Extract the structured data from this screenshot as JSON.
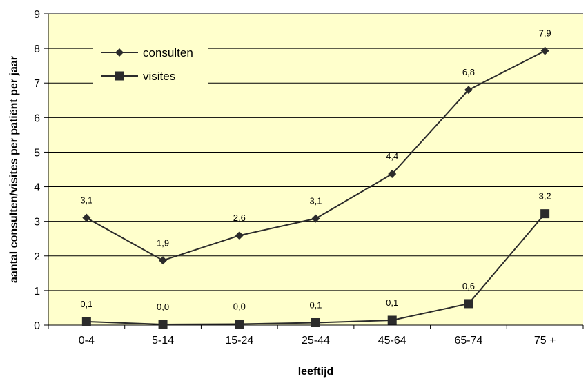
{
  "chart_data": {
    "type": "line",
    "categories": [
      "0-4",
      "5-14",
      "15-24",
      "25-44",
      "45-64",
      "65-74",
      "75 +"
    ],
    "series": [
      {
        "name": "consulten",
        "marker": "diamond",
        "values": [
          3.1,
          1.87,
          2.59,
          3.08,
          4.37,
          6.8,
          7.93
        ],
        "labels": [
          "3,1",
          "1,9",
          "2,6",
          "3,1",
          "4,4",
          "6,8",
          "7,9"
        ]
      },
      {
        "name": "visites",
        "marker": "square",
        "values": [
          0.1,
          0.02,
          0.03,
          0.07,
          0.14,
          0.62,
          3.22
        ],
        "labels": [
          "0,1",
          "0,0",
          "0,0",
          "0,1",
          "0,1",
          "0,6",
          "3,2"
        ]
      }
    ],
    "xlabel": "leeftijd",
    "ylabel": "aantal consulten/visites per patiënt per jaar",
    "ylim": [
      0,
      9
    ],
    "yticks": [
      0,
      1,
      2,
      3,
      4,
      5,
      6,
      7,
      8,
      9
    ],
    "grid": true,
    "legend_position": "top-left",
    "colors": {
      "plot_background": "#ffffcc",
      "line": "#2b2b2b",
      "grid": "#000000"
    }
  }
}
